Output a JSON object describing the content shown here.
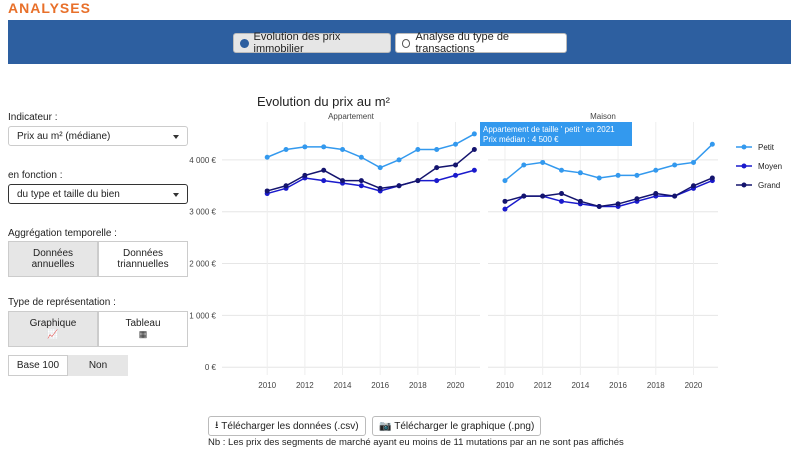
{
  "header": {
    "title": "ANALYSES"
  },
  "tabs": [
    "Evolution des prix immobilier",
    "Analyse du type de transactions"
  ],
  "sidebar": {
    "indicator_label": "Indicateur :",
    "indicator_value": "Prix au m² (médiane)",
    "by_label": "en fonction :",
    "by_value": "du type et taille du bien",
    "aggregation_label": "Aggrégation temporelle :",
    "aggregation_options": [
      "Données annuelles",
      "Données triannuelles"
    ],
    "representation_label": "Type de représentation :",
    "representation_options": [
      "Graphique",
      "Tableau"
    ],
    "base_label": "Base 100",
    "base_value": "Non"
  },
  "buttons": [
    "Télécharger les données (.csv)",
    "Télécharger le graphique (.png)"
  ],
  "note": "Nb : Les prix des segments de marché ayant eu moins de 11 mutations par an ne sont pas affichés",
  "chart_data": {
    "type": "line",
    "title": "Evolution du prix au m²",
    "x": [
      2010,
      2011,
      2012,
      2013,
      2014,
      2015,
      2016,
      2017,
      2018,
      2019,
      2020,
      2021
    ],
    "xticks": [
      2010,
      2012,
      2014,
      2016,
      2018,
      2020
    ],
    "ylim": [
      -150,
      4730
    ],
    "yticks": [
      {
        "value": 0,
        "label": "0 €"
      },
      {
        "value": 1000,
        "label": "1 000 €"
      },
      {
        "value": 2000,
        "label": "2 000 €"
      },
      {
        "value": 3000,
        "label": "3 000 €"
      },
      {
        "value": 4000,
        "label": "4 000 €"
      }
    ],
    "grid": true,
    "series": [
      {
        "name": "Petit",
        "color": "#3399ee"
      },
      {
        "name": "Moyen",
        "color": "#1a1acc"
      },
      {
        "name": "Grand",
        "color": "#14146e"
      }
    ],
    "panels": [
      {
        "title": "Appartement",
        "xlim": [
          2007.6,
          2021.3
        ],
        "series": [
          {
            "values": [
              4050,
              4200,
              4250,
              4250,
              4200,
              4050,
              3850,
              4000,
              4200,
              4200,
              4300,
              4500
            ]
          },
          {
            "values": [
              3350,
              3450,
              3650,
              3600,
              3550,
              3500,
              3400,
              3500,
              3600,
              3600,
              3700,
              3800
            ]
          },
          {
            "values": [
              3400,
              3500,
              3700,
              3800,
              3600,
              3600,
              3450,
              3500,
              3600,
              3850,
              3900,
              4200
            ]
          }
        ]
      },
      {
        "title": "Maison",
        "xlim": [
          2009.1,
          2021.3
        ],
        "series": [
          {
            "values": [
              3600,
              3900,
              3950,
              3800,
              3750,
              3650,
              3700,
              3700,
              3800,
              3900,
              3950,
              4300
            ]
          },
          {
            "values": [
              3050,
              3300,
              3300,
              3200,
              3150,
              3100,
              3100,
              3200,
              3300,
              3300,
              3450,
              3600
            ]
          },
          {
            "values": [
              3200,
              3300,
              3300,
              3350,
              3200,
              3100,
              3150,
              3250,
              3350,
              3300,
              3500,
              3650
            ]
          }
        ]
      }
    ],
    "annotations": [
      "Appartement de taille ' petit ' en  2021",
      "Prix médian  :  4 500 €"
    ]
  }
}
